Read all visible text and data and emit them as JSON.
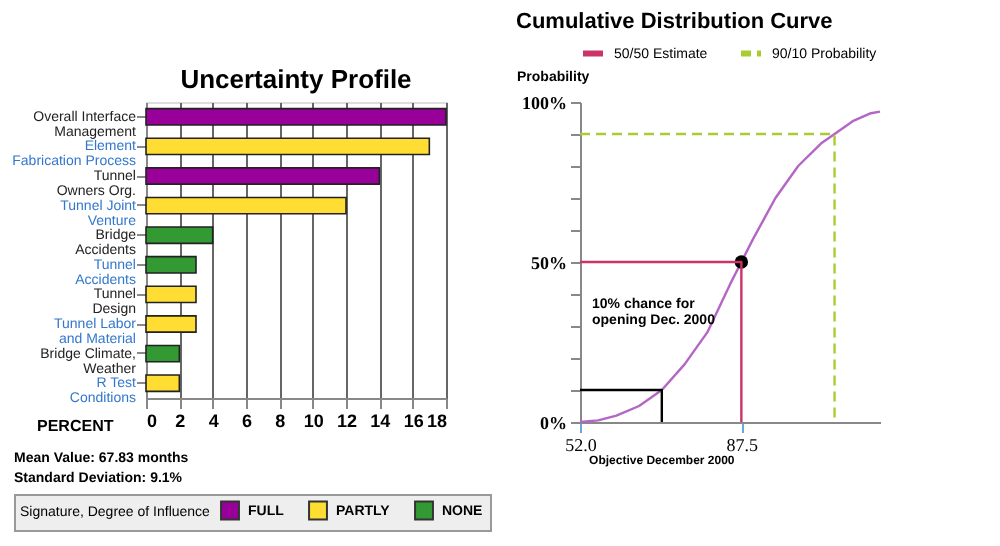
{
  "chart_data": [
    {
      "type": "bar",
      "title": "Uncertainty Profile",
      "orientation": "horizontal",
      "xlabel": "PERCENT",
      "legend_title": "Signature, Degree of Influence",
      "legend": "bottom",
      "categories": [
        "Overall Interface Management",
        "Element Fabrication Process",
        "Tunnel Owners Org.",
        "Tunnel Joint Venture",
        "Bridge Accidents",
        "Tunnel Accidents",
        "Tunnel Design",
        "Tunnel Labor and Material",
        "Bridge Climate, Weather",
        "R Test Conditions"
      ],
      "series": [
        {
          "name": "FULL",
          "color": "#990099",
          "values": [
            18,
            null,
            14,
            null,
            null,
            null,
            null,
            null,
            null,
            null
          ]
        },
        {
          "name": "PARTLY",
          "color": "#ffdd33",
          "values": [
            null,
            17,
            null,
            12,
            null,
            null,
            3,
            3,
            null,
            2
          ]
        },
        {
          "name": "NONE",
          "color": "#339933",
          "values": [
            null,
            null,
            null,
            null,
            4,
            3,
            null,
            null,
            2,
            null
          ]
        }
      ],
      "xlim": [
        0,
        18
      ],
      "xticks": [
        0,
        2,
        4,
        6,
        8,
        10,
        12,
        14,
        16,
        18
      ],
      "grid": "x",
      "annotations": [
        "Mean Value: 67.83 months",
        "Standard Deviation: 9.1%"
      ]
    },
    {
      "type": "line",
      "title": "Cumulative Distribution Curve",
      "ylabel": "Probability",
      "legend": "top",
      "series": [
        {
          "color": "#b366c4",
          "marker": "none",
          "line_style": "solid",
          "x": [
            52,
            56,
            60,
            65,
            70,
            75,
            80,
            85,
            87.5,
            90,
            95,
            100,
            105,
            108,
            112,
            116,
            118
          ],
          "values": [
            0,
            0.5,
            2,
            5,
            10,
            18,
            28,
            43,
            50,
            57,
            70,
            80,
            87,
            90,
            94,
            96.5,
            97
          ]
        },
        {
          "name": "50/50 Estimate",
          "color": "#cc3366",
          "marker": "none",
          "line_style": "solid",
          "x": [
            52,
            87.5,
            87.5
          ],
          "values": [
            50,
            50,
            0
          ]
        },
        {
          "name": "90/10 Probability",
          "color": "#aacc33",
          "marker": "none",
          "line_style": "dashed",
          "x": [
            52,
            108,
            108
          ],
          "values": [
            90,
            90,
            0
          ]
        },
        {
          "color": "#000000",
          "marker": "none",
          "line_style": "solid",
          "x": [
            52,
            70,
            70
          ],
          "values": [
            10,
            10,
            0
          ]
        },
        {
          "type": "scatter",
          "color": "#000000",
          "marker": "circle",
          "x": [
            87.5
          ],
          "values": [
            50
          ]
        }
      ],
      "xlim": [
        52,
        118
      ],
      "xticks": [
        {
          "value": 52,
          "label": "52.0"
        },
        {
          "value": 87.5,
          "label": "87.5"
        }
      ],
      "ylim": [
        0,
        100
      ],
      "yticks": [
        {
          "value": 0,
          "label": "0%"
        },
        {
          "value": 10,
          "label": null
        },
        {
          "value": 20,
          "label": null
        },
        {
          "value": 30,
          "label": null
        },
        {
          "value": 40,
          "label": null
        },
        {
          "value": 50,
          "label": "50%"
        },
        {
          "value": 60,
          "label": null
        },
        {
          "value": 70,
          "label": null
        },
        {
          "value": 80,
          "label": null
        },
        {
          "value": 90,
          "label": null
        },
        {
          "value": 100,
          "label": "100%"
        }
      ],
      "annotations": [
        "10% chance for opening Dec. 2000",
        {
          "text": "Objective December 2000",
          "x": 70,
          "y": 0
        }
      ]
    }
  ]
}
